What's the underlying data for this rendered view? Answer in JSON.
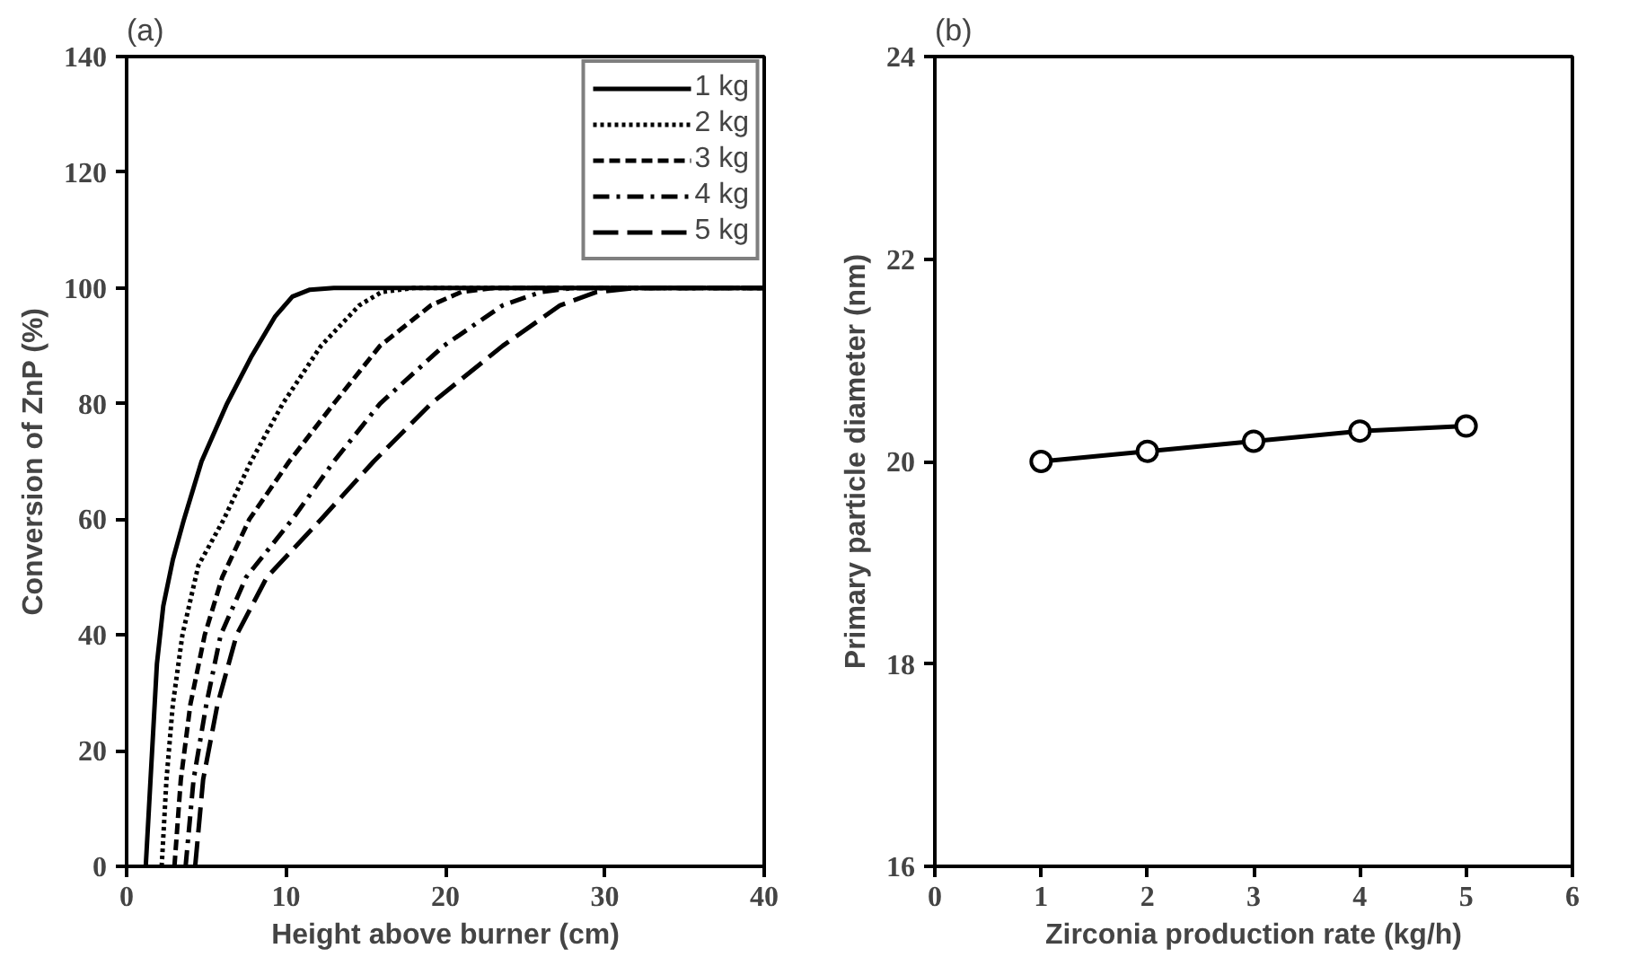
{
  "chart_data": [
    {
      "type": "line",
      "title": "(a)",
      "xlabel": "Height above burner (cm)",
      "ylabel": "Conversion of ZnP (%)",
      "xlim": [
        0,
        40
      ],
      "ylim": [
        0,
        140
      ],
      "xticks": [
        0,
        10,
        20,
        30,
        40
      ],
      "yticks": [
        0,
        20,
        40,
        60,
        80,
        100,
        120,
        140
      ],
      "grid": false,
      "legend": "top right",
      "marker": "none",
      "series": [
        {
          "name": "1 kg",
          "color": "#000000",
          "line_style": "solid",
          "x": [
            1.2,
            1.4,
            1.6,
            1.9,
            2.3,
            2.9,
            3.6,
            4.7,
            6.3,
            7.8,
            9.3,
            10.4,
            11.5,
            13,
            40
          ],
          "values": [
            0,
            10,
            20,
            35,
            45,
            53,
            60,
            70,
            80,
            88,
            95,
            98.5,
            99.7,
            100,
            100
          ]
        },
        {
          "name": "2 kg",
          "color": "#000000",
          "line_style": "dotted",
          "x": [
            2.2,
            2.5,
            2.9,
            3.5,
            4.5,
            6.1,
            7.8,
            9.8,
            12.2,
            14.6,
            16,
            18,
            40
          ],
          "values": [
            0,
            15,
            28,
            40,
            52,
            60,
            70,
            80,
            90,
            97,
            99.3,
            100,
            100
          ]
        },
        {
          "name": "3 kg",
          "color": "#000000",
          "line_style": "dashed",
          "x": [
            3.0,
            3.4,
            4.0,
            4.9,
            6.0,
            7.7,
            10.2,
            13,
            15.9,
            19.1,
            21,
            23,
            40
          ],
          "values": [
            0,
            15,
            28,
            40,
            50,
            60,
            70,
            80,
            90,
            97,
            99.3,
            100,
            100
          ]
        },
        {
          "name": "4 kg",
          "color": "#000000",
          "line_style": "dashdot",
          "x": [
            3.7,
            4.2,
            5.0,
            5.9,
            7.5,
            10.4,
            13,
            15.9,
            19.9,
            23.6,
            26,
            28,
            40
          ],
          "values": [
            0,
            15,
            28,
            40,
            50,
            60,
            70,
            80,
            90,
            97,
            99.3,
            100,
            100
          ]
        },
        {
          "name": "5 kg",
          "color": "#000000",
          "line_style": "longdash",
          "x": [
            4.3,
            4.8,
            5.7,
            6.9,
            8.8,
            12.2,
            15.5,
            19.1,
            23.6,
            27.2,
            29.5,
            32,
            40
          ],
          "values": [
            0,
            15,
            28,
            40,
            50,
            60,
            70,
            80,
            90,
            97,
            99.3,
            100,
            100
          ]
        }
      ]
    },
    {
      "type": "line",
      "title": "(b)",
      "xlabel": "Zirconia production rate (kg/h)",
      "ylabel": "Primary particle diameter (nm)",
      "xlim": [
        0,
        6
      ],
      "ylim": [
        16,
        24
      ],
      "xticks": [
        0,
        1,
        2,
        3,
        4,
        5,
        6
      ],
      "yticks": [
        16,
        18,
        20,
        22,
        24
      ],
      "grid": false,
      "marker": "circle",
      "line_style": "solid",
      "series": [
        {
          "color": "#000000",
          "x": [
            1,
            2,
            3,
            4,
            5
          ],
          "values": [
            20.0,
            20.1,
            20.2,
            20.3,
            20.35
          ]
        }
      ]
    }
  ]
}
